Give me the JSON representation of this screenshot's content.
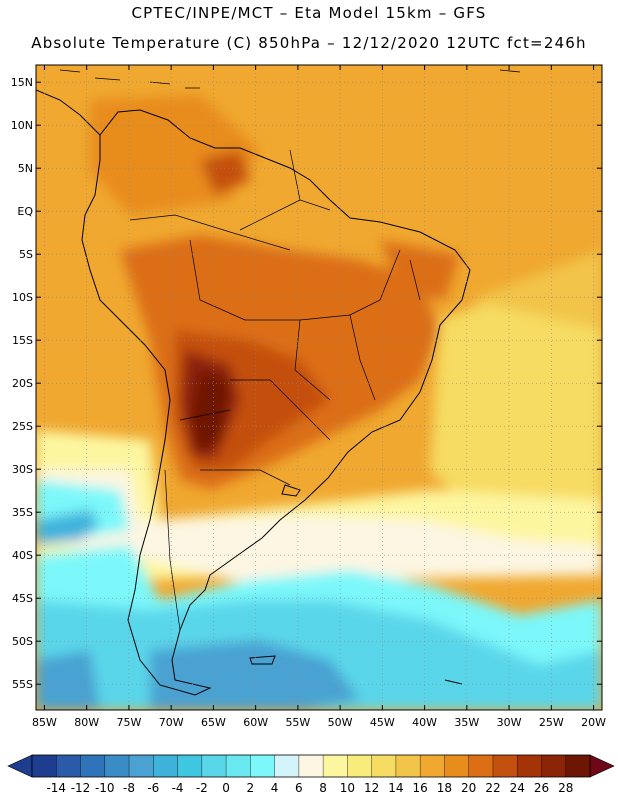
{
  "title_line1": "CPTEC/INPE/MCT –  Eta Model 15km – GFS",
  "title_line2": "Absolute Temperature (C) 850hPa – 12/12/2020 12UTC fct=246h",
  "lat_labels": [
    "15N",
    "10N",
    "5N",
    "EQ",
    "5S",
    "10S",
    "15S",
    "20S",
    "25S",
    "30S",
    "35S",
    "40S",
    "45S",
    "50S",
    "55S"
  ],
  "lat_values": [
    15,
    10,
    5,
    0,
    -5,
    -10,
    -15,
    -20,
    -25,
    -30,
    -35,
    -40,
    -45,
    -50,
    -55
  ],
  "lon_labels": [
    "85W",
    "80W",
    "75W",
    "70W",
    "65W",
    "60W",
    "55W",
    "50W",
    "45W",
    "40W",
    "35W",
    "30W",
    "25W",
    "20W"
  ],
  "lon_values": [
    -85,
    -80,
    -75,
    -70,
    -65,
    -60,
    -55,
    -50,
    -45,
    -40,
    -35,
    -30,
    -25,
    -20
  ],
  "map_extent": {
    "lon_min": -86,
    "lon_max": -19,
    "lat_min": -58,
    "lat_max": 17
  },
  "colorbar": {
    "labels": [
      "-14",
      "-12",
      "-10",
      "-8",
      "-6",
      "-4",
      "-2",
      "0",
      "2",
      "4",
      "6",
      "8",
      "10",
      "12",
      "14",
      "16",
      "18",
      "20",
      "22",
      "24",
      "26",
      "28"
    ],
    "colors": [
      "#1f3d8f",
      "#2a5aa8",
      "#2f74b8",
      "#3a8cc6",
      "#4aa2d2",
      "#3fb2dc",
      "#3fc6e0",
      "#5ad6ea",
      "#6ae8f0",
      "#7cf8fa",
      "#d4f4fc",
      "#fdf6e2",
      "#fdf6a0",
      "#f8ec7a",
      "#f6dc62",
      "#f2c44a",
      "#f0a830",
      "#e88c1c",
      "#dc6e16",
      "#c45010",
      "#a43408",
      "#8c2408",
      "#6e1604"
    ],
    "under_color": "#1f3d8f",
    "over_color": "#6e0818"
  },
  "regions": [
    {
      "name": "tropical-atlantic-warm",
      "color": "#f0a830"
    },
    {
      "name": "south-atlantic-mild",
      "color": "#f6dc62"
    },
    {
      "name": "pale-yellow-band",
      "color": "#fdf6a0"
    },
    {
      "name": "cream-band",
      "color": "#fdf6e2"
    },
    {
      "name": "cyan-band",
      "color": "#7cf8fa"
    },
    {
      "name": "light-blue-band",
      "color": "#5ad6ea"
    },
    {
      "name": "blue-band",
      "color": "#4aa2d2"
    },
    {
      "name": "continental-hot",
      "color": "#dc6e16"
    },
    {
      "name": "hot-core",
      "color": "#a43408"
    },
    {
      "name": "hottest-core",
      "color": "#6e1604"
    }
  ]
}
